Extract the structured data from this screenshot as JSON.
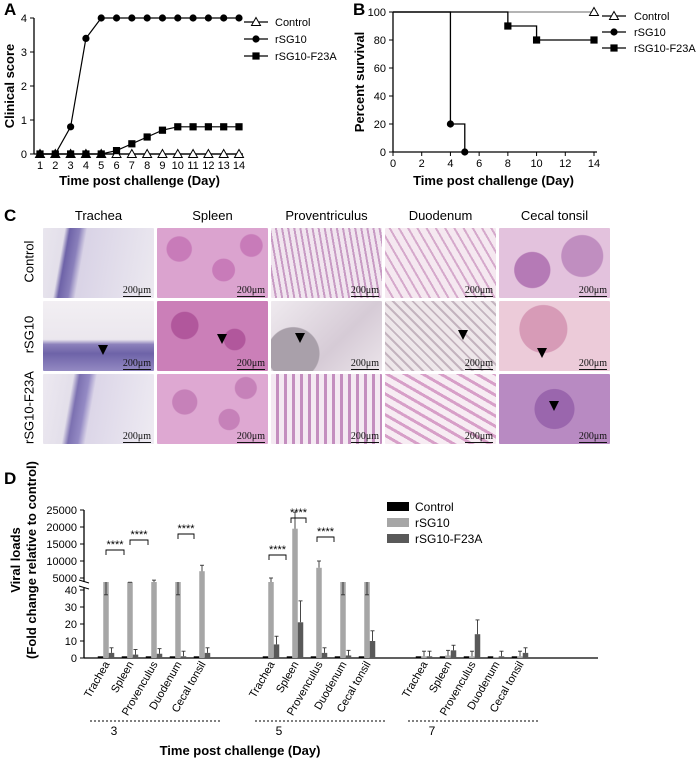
{
  "panels": {
    "a": "A",
    "b": "B",
    "c": "C",
    "d": "D"
  },
  "chart_data": [
    {
      "panel": "A",
      "type": "line",
      "xlabel": "Time post challenge (Day)",
      "ylabel": "Clinical score",
      "xlim": [
        1,
        14
      ],
      "ylim": [
        0,
        4
      ],
      "x": [
        1,
        2,
        3,
        4,
        5,
        6,
        7,
        8,
        9,
        10,
        11,
        12,
        13,
        14
      ],
      "xticks": [
        "1",
        "2",
        "3",
        "4",
        "5",
        "6",
        "7",
        "8",
        "9",
        "10",
        "11",
        "12",
        "13",
        "14"
      ],
      "yticks": [
        "0",
        "1",
        "2",
        "3",
        "4"
      ],
      "legend_position": "right",
      "series": [
        {
          "name": "Control",
          "marker": "triangle-open",
          "values": [
            0,
            0,
            0,
            0,
            0,
            0,
            0,
            0,
            0,
            0,
            0,
            0,
            0,
            0
          ]
        },
        {
          "name": "rSG10",
          "marker": "circle",
          "values": [
            0,
            0,
            0.8,
            3.4,
            4,
            4,
            4,
            4,
            4,
            4,
            4,
            4,
            4,
            4
          ]
        },
        {
          "name": "rSG10-F23A",
          "marker": "square",
          "values": [
            0,
            0,
            0,
            0,
            0,
            0.1,
            0.3,
            0.5,
            0.7,
            0.8,
            0.8,
            0.8,
            0.8,
            0.8
          ]
        }
      ]
    },
    {
      "panel": "B",
      "type": "line",
      "xlabel": "Time post challenge (Day)",
      "ylabel": "Percent survival",
      "xlim": [
        0,
        14
      ],
      "ylim": [
        0,
        100
      ],
      "xticks": [
        "0",
        "2",
        "4",
        "6",
        "8",
        "10",
        "12",
        "14"
      ],
      "yticks": [
        "0",
        "20",
        "40",
        "60",
        "80",
        "100"
      ],
      "legend_position": "right",
      "series": [
        {
          "name": "Control",
          "marker": "triangle-open",
          "steps": [
            [
              0,
              100
            ],
            [
              14,
              100
            ]
          ],
          "markers": [
            [
              14,
              100
            ]
          ]
        },
        {
          "name": "rSG10",
          "marker": "circle",
          "steps": [
            [
              0,
              100
            ],
            [
              4,
              100
            ],
            [
              4,
              20
            ],
            [
              5,
              20
            ],
            [
              5,
              0
            ]
          ],
          "markers": [
            [
              4,
              20
            ],
            [
              5,
              0
            ]
          ]
        },
        {
          "name": "rSG10-F23A",
          "marker": "square",
          "steps": [
            [
              0,
              100
            ],
            [
              8,
              100
            ],
            [
              8,
              90
            ],
            [
              10,
              90
            ],
            [
              10,
              80
            ],
            [
              14,
              80
            ]
          ],
          "markers": [
            [
              8,
              90
            ],
            [
              10,
              80
            ],
            [
              14,
              80
            ]
          ]
        }
      ]
    },
    {
      "panel": "D",
      "type": "bar",
      "ylabel_line1": "Viral loads",
      "ylabel_line2": "(Fold change relative to control)",
      "xlabel": "Time post challenge (Day)",
      "groups": [
        "3",
        "5",
        "7"
      ],
      "tissues": [
        "Trachea",
        "Spleen",
        "Provenculus",
        "Duodenum",
        "Cecal tonsil"
      ],
      "upper_yticks": [
        "5000",
        "10000",
        "15000",
        "20000",
        "25000"
      ],
      "lower_yticks": [
        "0",
        "10",
        "20",
        "30",
        "40"
      ],
      "legend_position": "top-right",
      "series": [
        {
          "name": "Control",
          "color": "#000000"
        },
        {
          "name": "rSG10",
          "color": "#a6a6a6"
        },
        {
          "name": "rSG10-F23A",
          "color": "#595959"
        }
      ],
      "data": {
        "3": {
          "Control": [
            1,
            1,
            1,
            1,
            1
          ],
          "rSG10": [
            45,
            3000,
            3500,
            45,
            7000
          ],
          "rSG10-F23A": [
            3,
            2,
            2.5,
            1,
            3
          ]
        },
        "5": {
          "Control": [
            1,
            1,
            1,
            1,
            1
          ],
          "rSG10": [
            4000,
            19500,
            8000,
            45,
            45
          ],
          "rSG10-F23A": [
            8,
            21,
            3,
            1.5,
            10
          ]
        },
        "7": {
          "Control": [
            1,
            1,
            1,
            1,
            1
          ],
          "rSG10": [
            1,
            1.5,
            1,
            0.5,
            1
          ],
          "rSG10-F23A": [
            1,
            4.5,
            14,
            1,
            3
          ]
        }
      },
      "significance": "****"
    }
  ],
  "histology": {
    "columns": [
      "Trachea",
      "Spleen",
      "Proventriculus",
      "Duodenum",
      "Cecal tonsil"
    ],
    "rows": [
      "Control",
      "rSG10",
      "rSG10-F23A"
    ],
    "scale_bar": "200μm"
  }
}
